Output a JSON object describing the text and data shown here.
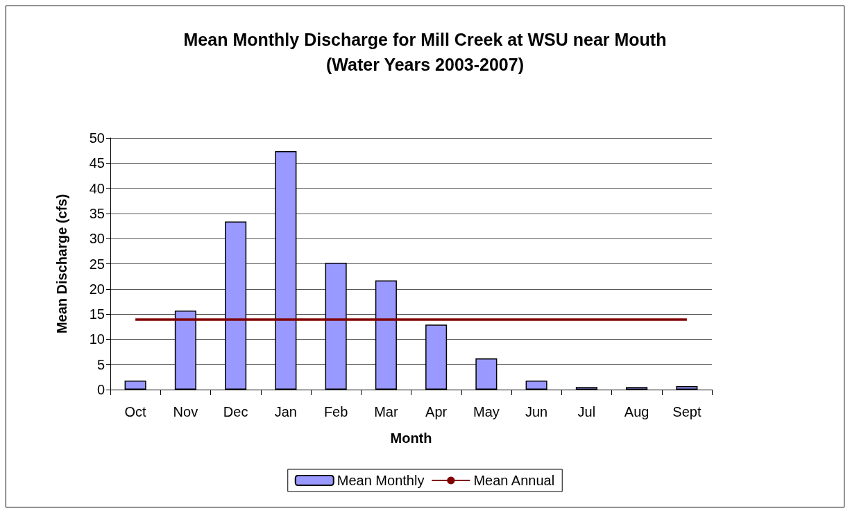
{
  "chart_data": {
    "type": "bar",
    "title": "Mean Monthly Discharge for Mill Creek at WSU near Mouth\n(Water Years 2003-2007)",
    "xlabel": "Month",
    "ylabel": "Mean Discharge (cfs)",
    "categories": [
      "Oct",
      "Nov",
      "Dec",
      "Jan",
      "Feb",
      "Mar",
      "Apr",
      "May",
      "Jun",
      "Jul",
      "Aug",
      "Sept"
    ],
    "series": [
      {
        "name": "Mean Monthly",
        "color": "#9999ff",
        "values": [
          1.8,
          15.7,
          33.4,
          47.4,
          25.2,
          21.7,
          12.9,
          6.2,
          1.8,
          0.5,
          0.5,
          0.7
        ]
      },
      {
        "name": "Mean Annual",
        "type": "line",
        "color": "#800000",
        "values": [
          13.9,
          13.9,
          13.9,
          13.9,
          13.9,
          13.9,
          13.9,
          13.9,
          13.9,
          13.9,
          13.9,
          13.9
        ]
      }
    ],
    "ylim": [
      0,
      50
    ],
    "yticks": [
      0,
      5,
      10,
      15,
      20,
      25,
      30,
      35,
      40,
      45,
      50
    ],
    "grid": "y",
    "legend": "bottom",
    "marker": "none"
  }
}
